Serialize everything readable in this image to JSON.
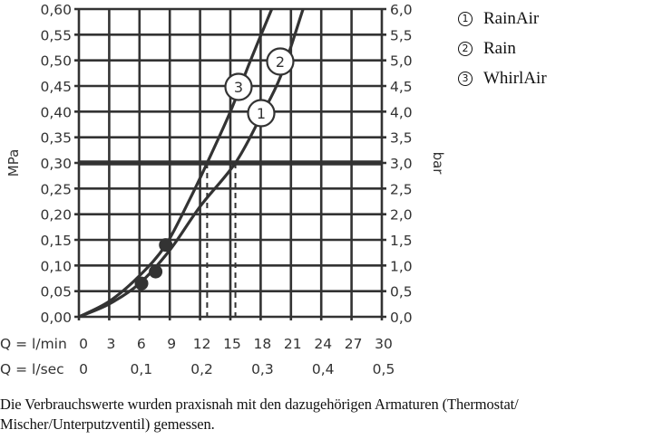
{
  "chart_data": {
    "type": "line",
    "title": "",
    "xlabel": "Q = l/min",
    "xlabel_secondary": "Q = l/sec",
    "ylabel": "MPa",
    "ylabel_right": "bar",
    "xlim": [
      0,
      30
    ],
    "ylim": [
      0,
      0.6
    ],
    "ylim_right": [
      0,
      6.0
    ],
    "grid": true,
    "x_ticks": [
      "0",
      "3",
      "6",
      "9",
      "12",
      "15",
      "18",
      "21",
      "24",
      "27",
      "30"
    ],
    "x_ticks_secondary": [
      "0",
      "0,1",
      "0,2",
      "0,3",
      "0,4",
      "0,5"
    ],
    "y_ticks": [
      "0,00",
      "0,05",
      "0,10",
      "0,15",
      "0,20",
      "0,25",
      "0,30",
      "0,35",
      "0,40",
      "0,45",
      "0,50",
      "0,55",
      "0,60"
    ],
    "y_ticks_right": [
      "0,0",
      "0,5",
      "1,0",
      "1,5",
      "2,0",
      "2,5",
      "3,0",
      "3,5",
      "4,0",
      "4,5",
      "5,0",
      "5,5",
      "6,0"
    ],
    "reference_line": {
      "y": 0.3,
      "label": "0,30 MPa / 3,0 bar"
    },
    "dashed_markers": [
      {
        "series": "WhirlAir",
        "x": 12.7,
        "y": 0.3
      },
      {
        "series": "RainAir / Rain",
        "x": 15.5,
        "y": 0.3
      }
    ],
    "series": [
      {
        "id": "1",
        "name": "RainAir",
        "x": [
          0,
          3,
          6,
          9,
          12,
          15.5,
          18,
          20,
          22.2
        ],
        "y": [
          0,
          0.025,
          0.065,
          0.13,
          0.215,
          0.3,
          0.39,
          0.47,
          0.6
        ]
      },
      {
        "id": "2",
        "name": "Rain",
        "x": [
          0,
          3,
          6,
          9,
          12,
          15.5,
          18,
          20,
          22.2
        ],
        "y": [
          0,
          0.025,
          0.065,
          0.13,
          0.215,
          0.3,
          0.39,
          0.47,
          0.6
        ]
      },
      {
        "id": "3",
        "name": "WhirlAir",
        "x": [
          0,
          3,
          6,
          8.6,
          11,
          12.7,
          15,
          17,
          19.1
        ],
        "y": [
          0,
          0.03,
          0.08,
          0.14,
          0.23,
          0.3,
          0.4,
          0.5,
          0.6
        ]
      }
    ],
    "points": [
      {
        "x": 8.6,
        "y": 0.14
      },
      {
        "x": 7.6,
        "y": 0.088
      },
      {
        "x": 6.2,
        "y": 0.065
      }
    ]
  },
  "legend": {
    "items": [
      {
        "num": "1",
        "label": "RainAir"
      },
      {
        "num": "2",
        "label": "Rain"
      },
      {
        "num": "3",
        "label": "WhirlAir"
      }
    ]
  },
  "caption": {
    "line1": "Die Verbrauchswerte wurden praxisnah mit den dazugehörigen Armaturen (Thermostat/",
    "line2": "Mischer/Unterputzventil) gemessen."
  },
  "colors": {
    "ink": "#333333",
    "background": "#ffffff"
  }
}
